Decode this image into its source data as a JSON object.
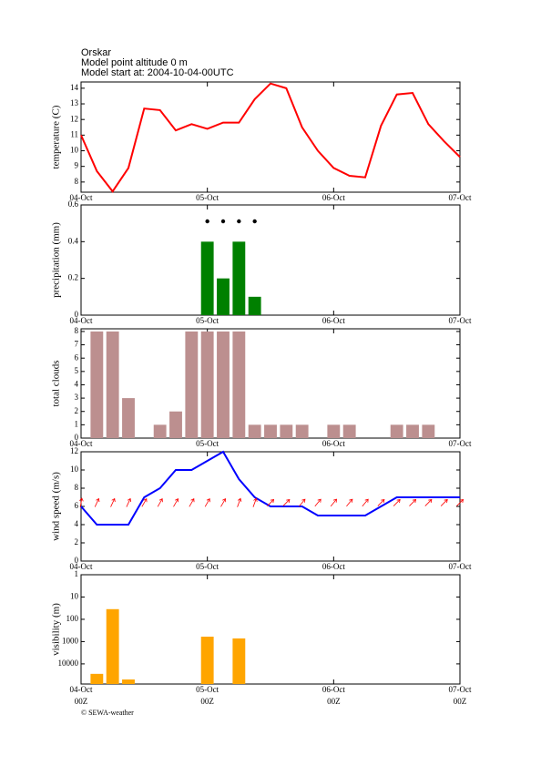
{
  "header": {
    "station": "Orskar",
    "altitude": "Model point altitude  0 m",
    "model_start": "Model start at: 2004-10-04-00UTC"
  },
  "footer": "© SEWA-weather",
  "chart_data": [
    {
      "type": "line",
      "ylabel": "temperature (C)",
      "color": "#ff0000",
      "x": [
        0,
        3,
        6,
        9,
        12,
        15,
        18,
        21,
        24,
        27,
        30,
        33,
        36,
        39,
        42,
        45,
        48,
        51,
        54,
        57,
        60,
        63,
        66,
        69,
        72
      ],
      "values": [
        11.0,
        8.7,
        7.4,
        8.9,
        12.7,
        12.6,
        11.3,
        11.7,
        11.4,
        11.8,
        11.8,
        13.3,
        14.3,
        14.0,
        11.5,
        10.0,
        8.9,
        8.4,
        8.3,
        11.6,
        13.6,
        13.7,
        11.7,
        10.6,
        9.6
      ],
      "xlim": [
        0,
        72
      ],
      "xticks": [
        {
          "value": 0,
          "label": "04-Oct"
        },
        {
          "value": 24,
          "label": "05-Oct"
        },
        {
          "value": 48,
          "label": "06-Oct"
        },
        {
          "value": 72,
          "label": "07-Oct"
        }
      ],
      "ylim": [
        7.35,
        14.4
      ],
      "yticks": [
        8,
        9,
        10,
        11,
        12,
        13,
        14
      ]
    },
    {
      "type": "bar",
      "ylabel": "precipitation (mm)",
      "color": "#008000",
      "x": [
        24,
        27,
        30,
        33
      ],
      "values": [
        0.4,
        0.2,
        0.4,
        0.1
      ],
      "xlim": [
        0,
        72
      ],
      "xticks": [
        {
          "value": 0,
          "label": "04-Oct"
        },
        {
          "value": 24,
          "label": "05-Oct"
        },
        {
          "value": 48,
          "label": "06-Oct"
        },
        {
          "value": 72,
          "label": "07-Oct"
        }
      ],
      "ylim": [
        0,
        0.6
      ],
      "yticks": [
        0,
        0.2,
        0.4,
        0.6
      ]
    },
    {
      "type": "bar",
      "ylabel": "total clouds",
      "color": "#bc8f8f",
      "x": [
        3,
        6,
        9,
        12,
        15,
        18,
        21,
        24,
        27,
        30,
        33,
        36,
        39,
        42,
        45,
        48,
        51,
        54,
        57,
        60,
        63,
        66,
        69
      ],
      "values": [
        8,
        8,
        3,
        0,
        1,
        2,
        8,
        8,
        8,
        8,
        1,
        1,
        1,
        1,
        0,
        1,
        1,
        0,
        0,
        1,
        1,
        1,
        0
      ],
      "xlim": [
        0,
        72
      ],
      "xticks": [
        {
          "value": 0,
          "label": "04-Oct"
        },
        {
          "value": 24,
          "label": "05-Oct"
        },
        {
          "value": 48,
          "label": "06-Oct"
        },
        {
          "value": 72,
          "label": "07-Oct"
        }
      ],
      "ylim": [
        0,
        8.2
      ],
      "yticks": [
        0,
        1,
        2,
        3,
        4,
        5,
        6,
        7,
        8
      ]
    },
    {
      "type": "line",
      "ylabel": "wind speed (m/s)",
      "color": "#0000ff",
      "arrow_color": "#ff0000",
      "x": [
        0,
        3,
        6,
        9,
        12,
        15,
        18,
        21,
        24,
        27,
        30,
        33,
        36,
        39,
        42,
        45,
        48,
        51,
        54,
        57,
        60,
        63,
        66,
        69,
        72
      ],
      "values": [
        6,
        4,
        4,
        4,
        7,
        8,
        10,
        10,
        11,
        12,
        9,
        7,
        6,
        6,
        6,
        5,
        5,
        5,
        5,
        6,
        7,
        7,
        7,
        7,
        7
      ],
      "arrow_directions": [
        10,
        25,
        25,
        25,
        30,
        30,
        30,
        30,
        30,
        30,
        20,
        20,
        45,
        45,
        40,
        40,
        40,
        40,
        40,
        45,
        45,
        45,
        45,
        45,
        45
      ],
      "xlim": [
        0,
        72
      ],
      "xticks": [
        {
          "value": 0,
          "label": "04-Oct"
        },
        {
          "value": 24,
          "label": "05-Oct"
        },
        {
          "value": 48,
          "label": "06-Oct"
        },
        {
          "value": 72,
          "label": "07-Oct"
        }
      ],
      "ylim": [
        0,
        12
      ],
      "yticks": [
        0,
        2,
        4,
        6,
        8,
        10,
        12
      ]
    },
    {
      "type": "bar",
      "ylabel": "visibility (m)",
      "color": "#ffa500",
      "log_scale": true,
      "inverted": true,
      "x": [
        3,
        6,
        9,
        24,
        30
      ],
      "values": [
        28000,
        35,
        50000,
        600,
        720
      ],
      "xlim": [
        0,
        72
      ],
      "xticks": [
        {
          "value": 0,
          "label": "04-Oct"
        },
        {
          "value": 24,
          "label": "05-Oct"
        },
        {
          "value": 48,
          "label": "06-Oct"
        },
        {
          "value": 72,
          "label": "07-Oct"
        }
      ],
      "xtick_sublabels": [
        "00Z",
        "00Z",
        "00Z",
        "00Z"
      ],
      "ylim": [
        1,
        80000
      ],
      "yticks": [
        1,
        10,
        100,
        1000,
        10000
      ]
    }
  ]
}
